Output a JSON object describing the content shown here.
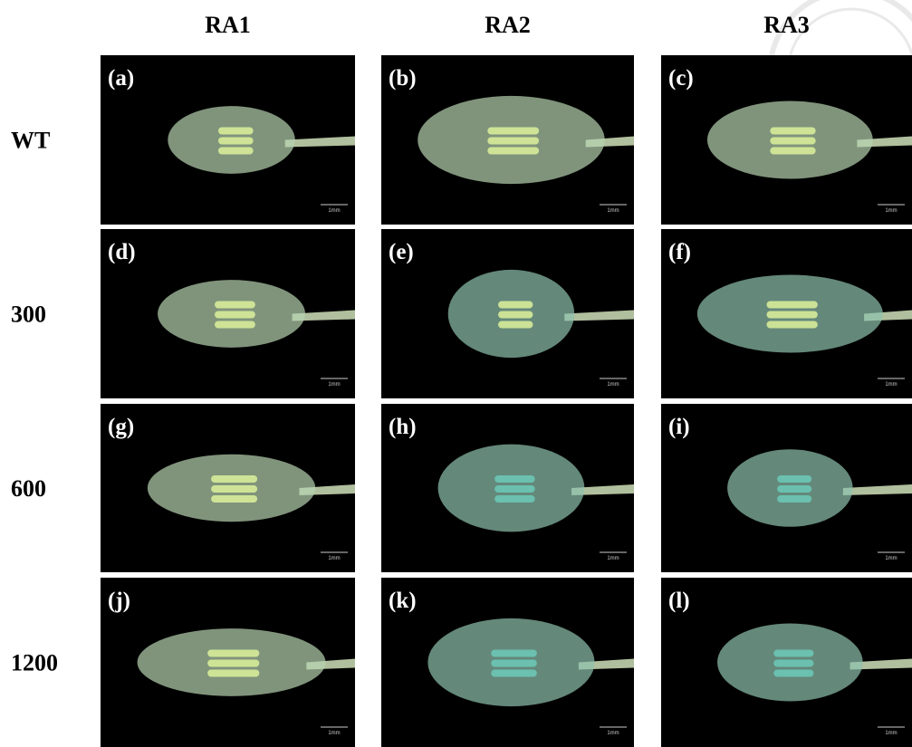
{
  "columns": [
    "RA1",
    "RA2",
    "RA3"
  ],
  "rows": [
    "WT",
    "300",
    "600",
    "1200"
  ],
  "panels": [
    {
      "label": "(a)",
      "scale": "1mm"
    },
    {
      "label": "(b)",
      "scale": "1mm"
    },
    {
      "label": "(c)",
      "scale": "1mm"
    },
    {
      "label": "(d)",
      "scale": "1mm"
    },
    {
      "label": "(e)",
      "scale": "1mm"
    },
    {
      "label": "(f)",
      "scale": "1mm"
    },
    {
      "label": "(g)",
      "scale": "1mm"
    },
    {
      "label": "(h)",
      "scale": "1mm"
    },
    {
      "label": "(i)",
      "scale": "1mm"
    },
    {
      "label": "(j)",
      "scale": "1mm"
    },
    {
      "label": "(k)",
      "scale": "1mm"
    },
    {
      "label": "(l)",
      "scale": "1mm"
    }
  ]
}
